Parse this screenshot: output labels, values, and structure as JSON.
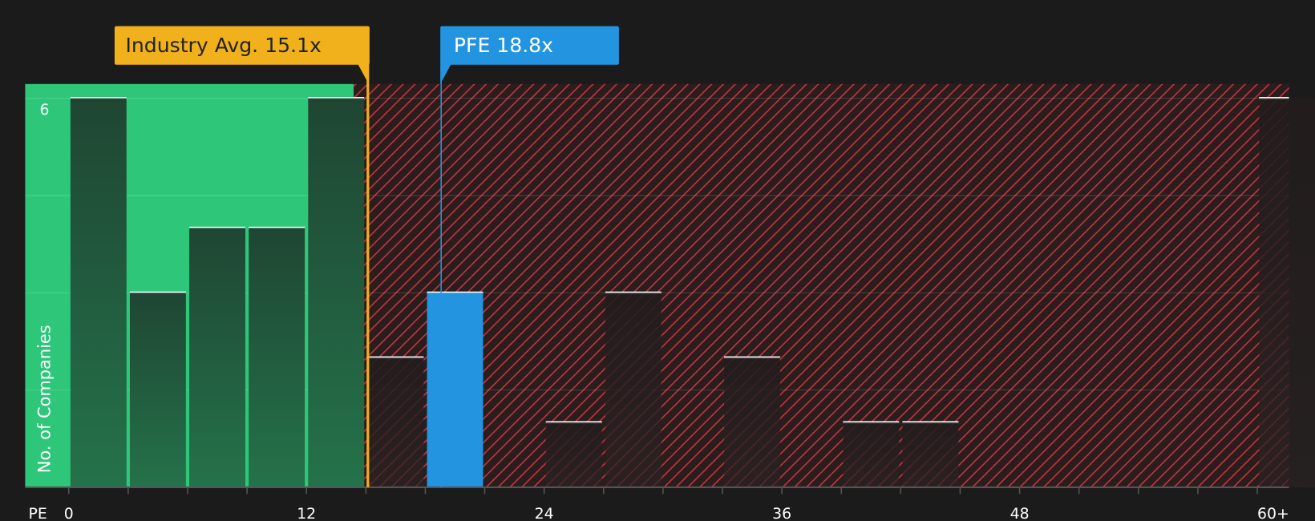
{
  "chart_data": {
    "type": "histogram",
    "x_label": "PE",
    "y_label": "No. of Companies",
    "bins": [
      0,
      3,
      6,
      9,
      12,
      15,
      18,
      21,
      24,
      27,
      30,
      33,
      36,
      39,
      42,
      45,
      48,
      51,
      54,
      57,
      60,
      63
    ],
    "values": [
      6,
      3,
      4,
      4,
      6,
      2,
      3,
      0,
      1,
      3,
      0,
      2,
      0,
      1,
      1,
      0,
      0,
      0,
      0,
      0,
      6
    ],
    "highlight": {
      "index": 6,
      "color": "#2394e0"
    },
    "xlim": [
      -2.2,
      61.6
    ],
    "ylim": [
      0,
      6.22
    ],
    "xticks": [
      0,
      12,
      24,
      36,
      48,
      {
        "value": 60,
        "label": "60+"
      }
    ],
    "yticks": [
      6
    ],
    "annotations": [
      {
        "label": "Industry Avg. 15.1x",
        "value": 15.1,
        "color": "#f0b11c"
      },
      {
        "label": "PFE 18.8x",
        "value": 18.8,
        "color": "#2394e0"
      }
    ],
    "colors": {
      "below": "#2ec77a",
      "above": "#c8353a"
    }
  }
}
